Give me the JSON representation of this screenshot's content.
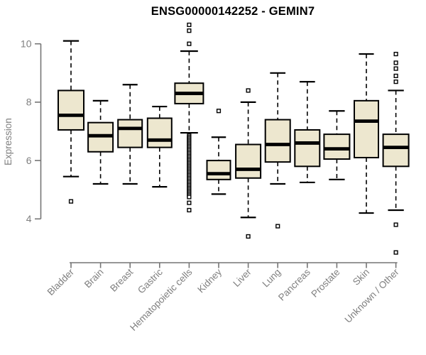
{
  "chart_data": {
    "type": "boxplot",
    "title": "ENSG00000142252 - GEMIN7",
    "ylabel": "Expression",
    "xlabel": "",
    "ylim": [
      4,
      10
    ],
    "yticks": [
      4,
      6,
      8,
      10
    ],
    "grid": false,
    "legend": "none",
    "colors": {
      "box_fill": "#ede7cf",
      "box_stroke": "#000000",
      "median": "#000000",
      "whisker": "#000000",
      "outlier_stroke": "#000000",
      "outlier_fill": "#ffffff",
      "axis": "#757575",
      "tick_label": "#7f7f7f",
      "title": "#000000",
      "background": "#ffffff"
    },
    "categories": [
      "Bladder",
      "Brain",
      "Breast",
      "Gastric",
      "Hematopoietic cells",
      "Kidney",
      "Liver",
      "Lung",
      "Pancreas",
      "Prostate",
      "Skin",
      "Unknown / Other"
    ],
    "series": [
      {
        "category": "Bladder",
        "whisker_low": 5.45,
        "q1": 7.05,
        "median": 7.55,
        "q3": 8.4,
        "whisker_high": 10.1,
        "outliers": [
          4.6
        ]
      },
      {
        "category": "Brain",
        "whisker_low": 5.2,
        "q1": 6.3,
        "median": 6.85,
        "q3": 7.3,
        "whisker_high": 8.05,
        "outliers": []
      },
      {
        "category": "Breast",
        "whisker_low": 5.2,
        "q1": 6.45,
        "median": 7.1,
        "q3": 7.4,
        "whisker_high": 8.6,
        "outliers": []
      },
      {
        "category": "Gastric",
        "whisker_low": 5.1,
        "q1": 6.45,
        "median": 6.7,
        "q3": 7.45,
        "whisker_high": 7.85,
        "outliers": []
      },
      {
        "category": "Hematopoietic cells",
        "whisker_low": 6.95,
        "q1": 7.95,
        "median": 8.3,
        "q3": 8.65,
        "whisker_high": 9.75,
        "outliers": [
          10.65,
          10.45,
          10.0,
          6.85,
          6.8,
          6.75,
          6.7,
          6.65,
          6.6,
          6.55,
          6.5,
          6.45,
          6.4,
          6.35,
          6.3,
          6.25,
          6.2,
          6.15,
          6.1,
          6.05,
          6.0,
          5.95,
          5.9,
          5.85,
          5.8,
          5.75,
          5.7,
          5.65,
          5.6,
          5.55,
          5.5,
          5.45,
          5.4,
          5.35,
          5.3,
          5.25,
          5.2,
          5.15,
          5.1,
          5.05,
          5.0,
          4.95,
          4.9,
          4.85,
          4.8,
          4.75,
          4.55,
          4.3
        ]
      },
      {
        "category": "Kidney",
        "whisker_low": 4.85,
        "q1": 5.35,
        "median": 5.55,
        "q3": 6.0,
        "whisker_high": 6.8,
        "outliers": [
          7.7
        ]
      },
      {
        "category": "Liver",
        "whisker_low": 4.05,
        "q1": 5.4,
        "median": 5.7,
        "q3": 6.55,
        "whisker_high": 8.0,
        "outliers": [
          8.4,
          3.4
        ]
      },
      {
        "category": "Lung",
        "whisker_low": 5.2,
        "q1": 5.95,
        "median": 6.55,
        "q3": 7.4,
        "whisker_high": 9.0,
        "outliers": [
          3.75
        ]
      },
      {
        "category": "Pancreas",
        "whisker_low": 5.25,
        "q1": 5.8,
        "median": 6.6,
        "q3": 7.05,
        "whisker_high": 8.7,
        "outliers": []
      },
      {
        "category": "Prostate",
        "whisker_low": 5.35,
        "q1": 6.05,
        "median": 6.4,
        "q3": 6.9,
        "whisker_high": 7.7,
        "outliers": []
      },
      {
        "category": "Skin",
        "whisker_low": 4.2,
        "q1": 6.1,
        "median": 7.35,
        "q3": 8.05,
        "whisker_high": 9.65,
        "outliers": []
      },
      {
        "category": "Unknown / Other",
        "whisker_low": 4.3,
        "q1": 5.8,
        "median": 6.45,
        "q3": 6.9,
        "whisker_high": 8.4,
        "outliers": [
          9.65,
          9.35,
          9.15,
          8.9,
          8.7,
          3.8,
          2.85
        ]
      }
    ]
  }
}
